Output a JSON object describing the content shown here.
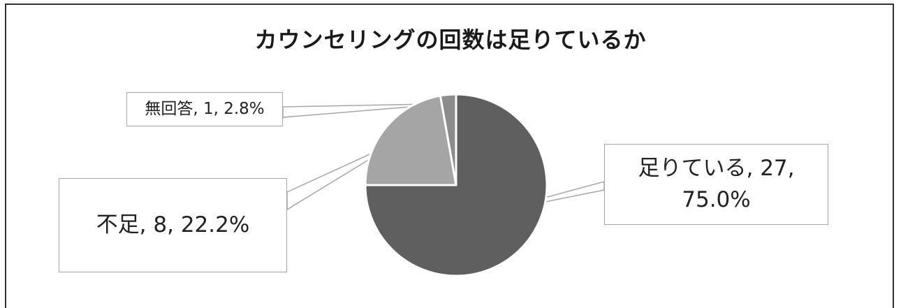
{
  "chart_data": {
    "type": "pie",
    "title": "カウンセリングの回数は足りているか",
    "slices": [
      {
        "category": "足りている",
        "count": 27,
        "percent": "75.0%",
        "color": "#5f5f60",
        "label_text": "足りている, 27,\n75.0%"
      },
      {
        "category": "不足",
        "count": 8,
        "percent": "22.2%",
        "color": "#a5a5a6",
        "label_text": "不足, 8, 22.2%"
      },
      {
        "category": "無回答",
        "count": 1,
        "percent": "2.8%",
        "color": "#8c8c8c",
        "label_text": "無回答, 1, 2.8%"
      }
    ],
    "legend": "none"
  }
}
